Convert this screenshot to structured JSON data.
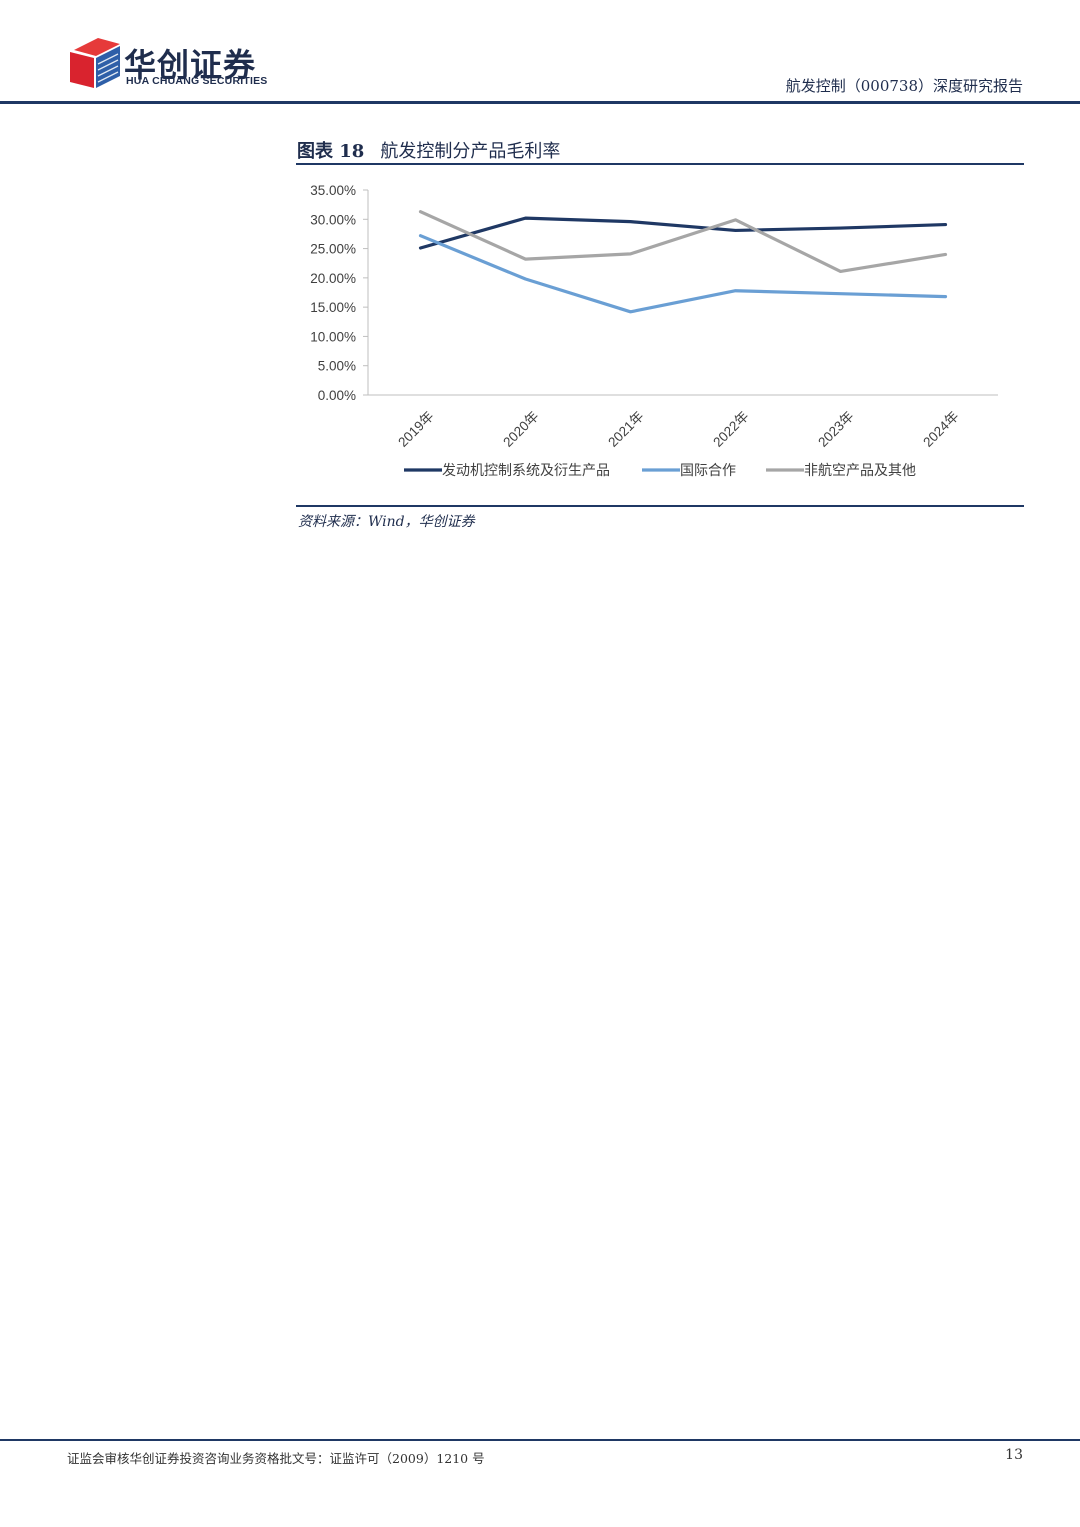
{
  "header": {
    "logo_cn": "华创证券",
    "logo_en": "HUA CHUANG SECURITIES",
    "report_title": "航发控制（000738）深度研究报告"
  },
  "figure": {
    "label": "图表 18",
    "title": "航发控制分产品毛利率",
    "source": "资料来源：Wind，华创证券"
  },
  "chart_data": {
    "type": "line",
    "categories": [
      "2019年",
      "2020年",
      "2021年",
      "2022年",
      "2023年",
      "2024年"
    ],
    "y_ticks": [
      "0.00%",
      "5.00%",
      "10.00%",
      "15.00%",
      "20.00%",
      "25.00%",
      "30.00%",
      "35.00%"
    ],
    "ylim": [
      0,
      35
    ],
    "grid": false,
    "legend_position": "bottom",
    "series": [
      {
        "name": "发动机控制系统及衍生产品",
        "color": "#1f3864",
        "values": [
          25.1,
          30.2,
          29.6,
          28.1,
          28.5,
          29.1
        ]
      },
      {
        "name": "国际合作",
        "color": "#6a9fd4",
        "values": [
          27.2,
          19.8,
          14.2,
          17.8,
          17.3,
          16.8
        ]
      },
      {
        "name": "非航空产品及其他",
        "color": "#a6a6a6",
        "values": [
          31.3,
          23.2,
          24.1,
          29.9,
          21.1,
          24.0
        ]
      }
    ]
  },
  "footer": {
    "text": "证监会审核华创证券投资咨询业务资格批文号：证监许可（2009）1210 号",
    "page": "13"
  }
}
